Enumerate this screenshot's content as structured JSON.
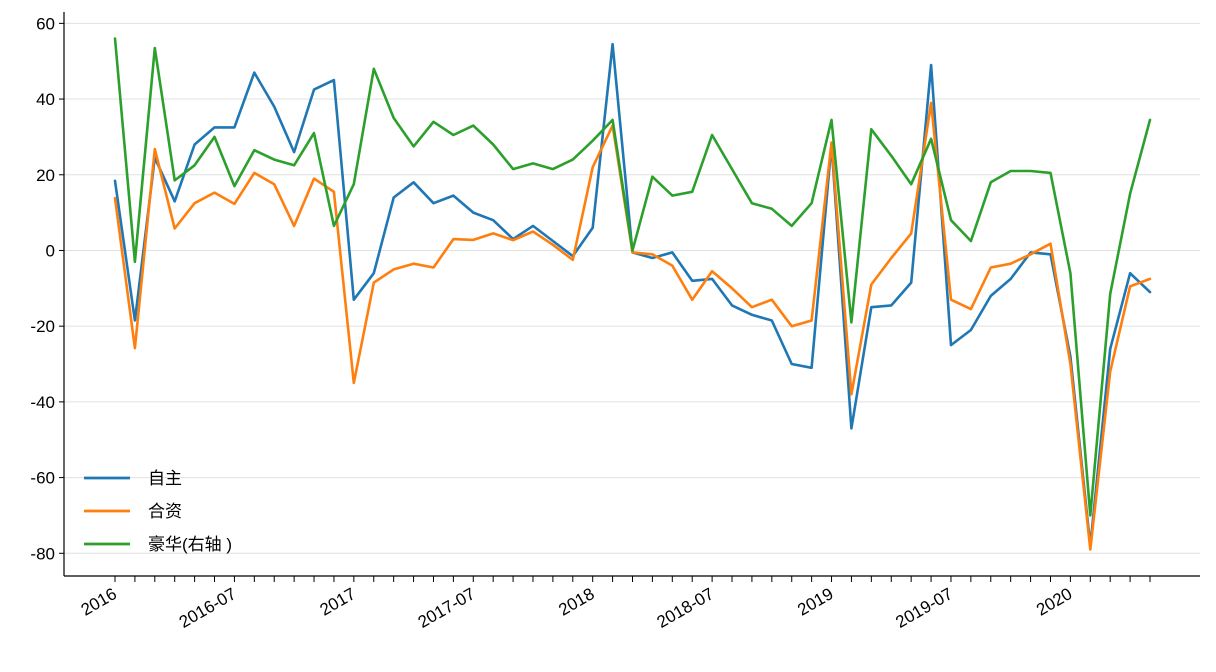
{
  "chart_data": {
    "type": "line",
    "title": "",
    "xlabel": "",
    "ylabel": "",
    "ylim": [
      -86,
      63
    ],
    "yticks": [
      -80,
      -60,
      -40,
      -20,
      0,
      20,
      40,
      60
    ],
    "ytick_labels": [
      "-80",
      "-60",
      "-40",
      "-20",
      "0",
      "20",
      "40",
      "60"
    ],
    "grid": "horizontal",
    "legend_position": "lower-left",
    "x": [
      "2016-01",
      "2016-02",
      "2016-03",
      "2016-04",
      "2016-05",
      "2016-06",
      "2016-07",
      "2016-08",
      "2016-09",
      "2016-10",
      "2016-11",
      "2016-12",
      "2017-01",
      "2017-02",
      "2017-03",
      "2017-04",
      "2017-05",
      "2017-06",
      "2017-07",
      "2017-08",
      "2017-09",
      "2017-10",
      "2017-11",
      "2017-12",
      "2018-01",
      "2018-02",
      "2018-03",
      "2018-04",
      "2018-05",
      "2018-06",
      "2018-07",
      "2018-08",
      "2018-09",
      "2018-10",
      "2018-11",
      "2018-12",
      "2019-01",
      "2019-02",
      "2019-03",
      "2019-04",
      "2019-05",
      "2019-06",
      "2019-07",
      "2019-08",
      "2019-09",
      "2019-10",
      "2019-11",
      "2019-12",
      "2020-01",
      "2020-02",
      "2020-03",
      "2020-04",
      "2020-05"
    ],
    "xtick_labels": [
      {
        "index": 0,
        "label": "2016"
      },
      {
        "index": 6,
        "label": "2016-07"
      },
      {
        "index": 12,
        "label": "2017"
      },
      {
        "index": 18,
        "label": "2017-07"
      },
      {
        "index": 24,
        "label": "2018"
      },
      {
        "index": 30,
        "label": "2018-07"
      },
      {
        "index": 36,
        "label": "2019"
      },
      {
        "index": 42,
        "label": "2019-07"
      },
      {
        "index": 48,
        "label": "2020"
      }
    ],
    "series": [
      {
        "name": "自主",
        "color": "#1f77b4",
        "values": [
          18.4,
          -18.5,
          24.5,
          13.0,
          28.0,
          32.5,
          32.5,
          47.0,
          38.0,
          26.0,
          42.5,
          45.0,
          -13.0,
          -6.0,
          14.0,
          18.0,
          12.5,
          14.5,
          10.0,
          8.0,
          3.0,
          6.5,
          2.5,
          -1.5,
          6.0,
          54.5,
          -0.5,
          -2.0,
          -0.5,
          -8.0,
          -7.5,
          -14.5,
          -17.0,
          -18.5,
          -30.0,
          -31.0,
          28.0,
          -47.0,
          -15.0,
          -14.5,
          -8.5,
          49.0,
          -25.0,
          -21.0,
          -12.0,
          -7.5,
          -0.5,
          -1.0,
          -28.0,
          -78.0,
          -26.0,
          -6.0,
          -11.0
        ]
      },
      {
        "name": "合资",
        "color": "#ff7f0e",
        "values": [
          13.8,
          -25.8,
          26.8,
          5.8,
          12.5,
          15.3,
          12.3,
          20.5,
          17.5,
          6.5,
          19.0,
          15.5,
          -35.0,
          -8.5,
          -5.0,
          -3.5,
          -4.5,
          3.0,
          2.8,
          4.5,
          2.7,
          5.0,
          1.5,
          -2.5,
          22.0,
          33.0,
          -0.5,
          -1.0,
          -4.0,
          -13.0,
          -5.5,
          -10.0,
          -15.0,
          -13.0,
          -20.0,
          -18.5,
          28.5,
          -38.0,
          -9.0,
          -2.0,
          4.5,
          39.0,
          -13.0,
          -15.5,
          -4.5,
          -3.5,
          -1.0,
          1.8,
          -30.0,
          -79.0,
          -32.0,
          -9.5,
          -7.5
        ]
      },
      {
        "name": "豪华(右轴 )",
        "color": "#2ca02c",
        "values": [
          56.0,
          -3.0,
          53.5,
          18.5,
          22.5,
          30.0,
          17.0,
          26.5,
          24.0,
          22.5,
          31.0,
          6.5,
          17.5,
          48.0,
          35.0,
          27.5,
          34.0,
          30.5,
          33.0,
          28.0,
          21.5,
          23.0,
          21.5,
          24.0,
          29.0,
          34.5,
          0.0,
          19.5,
          14.5,
          15.5,
          30.5,
          21.5,
          12.5,
          11.0,
          6.5,
          12.5,
          34.5,
          -19.0,
          32.0,
          25.0,
          17.5,
          29.5,
          8.0,
          2.5,
          18.0,
          21.0,
          21.0,
          20.5,
          -6.0,
          -70.0,
          -11.5,
          15.0,
          34.5
        ]
      }
    ]
  }
}
